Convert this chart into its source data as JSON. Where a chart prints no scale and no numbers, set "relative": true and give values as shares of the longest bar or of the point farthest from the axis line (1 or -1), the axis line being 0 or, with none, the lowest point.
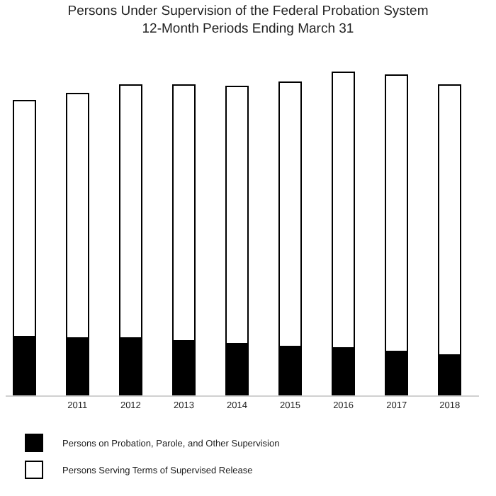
{
  "chart_data": {
    "type": "bar",
    "title": "Persons Under Supervision of the Federal Probation System",
    "subtitle": "12-Month Periods Ending March 31",
    "categories": [
      null,
      "2011",
      "2012",
      "2013",
      "2014",
      "2015",
      "2016",
      "2017",
      "2018"
    ],
    "stacked": true,
    "relative": true,
    "legend": "bottom",
    "grid": false,
    "series": [
      {
        "name": "Persons on Probation, Parole, and Other Supervision",
        "color": "#000000",
        "values": [
          0.183,
          0.178,
          0.178,
          0.17,
          0.161,
          0.152,
          0.148,
          0.135,
          0.126
        ]
      },
      {
        "name": "Persons Serving Terms of Supervised Release",
        "color": "#ffffff",
        "values": [
          0.73,
          0.757,
          0.783,
          0.791,
          0.796,
          0.817,
          0.852,
          0.857,
          0.835
        ]
      }
    ]
  }
}
